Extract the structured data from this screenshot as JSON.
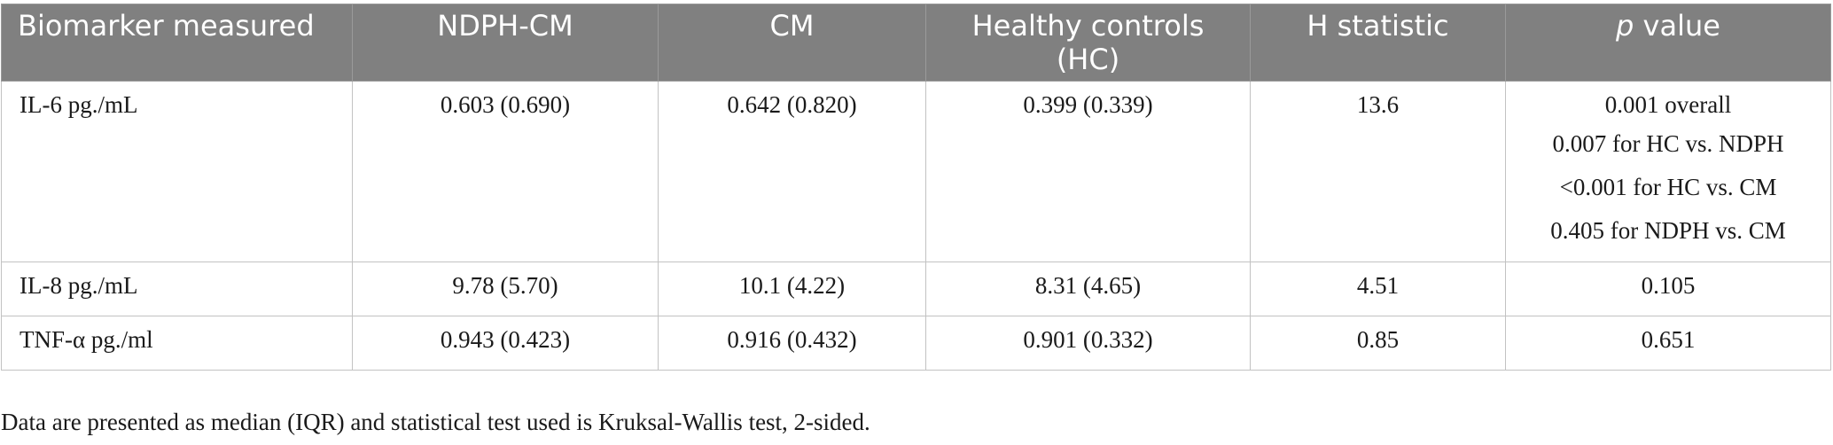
{
  "table": {
    "headers": [
      {
        "text": "Biomarker measured",
        "italic_prefix": ""
      },
      {
        "text": "NDPH-CM",
        "italic_prefix": ""
      },
      {
        "text": "CM",
        "italic_prefix": ""
      },
      {
        "text": "Healthy controls (HC)",
        "italic_prefix": ""
      },
      {
        "text": "H statistic",
        "italic_prefix": ""
      },
      {
        "text": " value",
        "italic_prefix": "p"
      }
    ],
    "rows": [
      {
        "biomarker": "IL-6 pg./mL",
        "ndph_cm": "0.603 (0.690)",
        "cm": "0.642 (0.820)",
        "hc": "0.399 (0.339)",
        "h_statistic": "13.6",
        "p_values": [
          "0.001 overall",
          "0.007 for HC vs. NDPH",
          "<0.001 for HC vs. CM",
          "0.405 for NDPH vs. CM"
        ]
      },
      {
        "biomarker": "IL-8 pg./mL",
        "ndph_cm": "9.78 (5.70)",
        "cm": "10.1 (4.22)",
        "hc": "8.31 (4.65)",
        "h_statistic": "4.51",
        "p_values": [
          "0.105"
        ]
      },
      {
        "biomarker": "TNF-α pg./ml",
        "ndph_cm": "0.943 (0.423)",
        "cm": "0.916 (0.432)",
        "hc": "0.901 (0.332)",
        "h_statistic": "0.85",
        "p_values": [
          "0.651"
        ]
      }
    ],
    "footnote": "Data are presented as median (IQR) and statistical test used is Kruksal-Wallis test, 2-sided."
  },
  "colors": {
    "header_bg": "#808080",
    "header_text": "#ffffff",
    "grid": "#c2c2c2",
    "body_text": "#1a1a1a"
  }
}
